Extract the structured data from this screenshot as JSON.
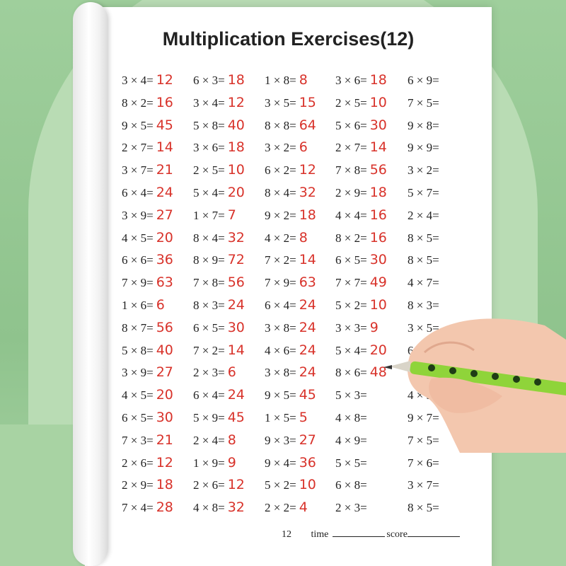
{
  "title": "Multiplication Exercises(12)",
  "columns": [
    [
      [
        "3 × 4=",
        "12"
      ],
      [
        "8 × 2=",
        "16"
      ],
      [
        "9 × 5=",
        "45"
      ],
      [
        "2 × 7=",
        "14"
      ],
      [
        "3 × 7=",
        "21"
      ],
      [
        "6 × 4=",
        "24"
      ],
      [
        "3 × 9=",
        "27"
      ],
      [
        "4 × 5=",
        "20"
      ],
      [
        "6 × 6=",
        "36"
      ],
      [
        "7 × 9=",
        "63"
      ],
      [
        "1 × 6=",
        "6"
      ],
      [
        "8 × 7=",
        "56"
      ],
      [
        "5 × 8=",
        "40"
      ],
      [
        "3 × 9=",
        "27"
      ],
      [
        "4 × 5=",
        "20"
      ],
      [
        "6 × 5=",
        "30"
      ],
      [
        "7 × 3=",
        "21"
      ],
      [
        "2 × 6=",
        "12"
      ],
      [
        "2 × 9=",
        "18"
      ],
      [
        "7 × 4=",
        "28"
      ]
    ],
    [
      [
        "6 × 3=",
        "18"
      ],
      [
        "3 × 4=",
        "12"
      ],
      [
        "5 × 8=",
        "40"
      ],
      [
        "3 × 6=",
        "18"
      ],
      [
        "2 × 5=",
        "10"
      ],
      [
        "5 × 4=",
        "20"
      ],
      [
        "1 × 7=",
        "7"
      ],
      [
        "8 × 4=",
        "32"
      ],
      [
        "8 × 9=",
        "72"
      ],
      [
        "7 × 8=",
        "56"
      ],
      [
        "8 × 3=",
        "24"
      ],
      [
        "6 × 5=",
        "30"
      ],
      [
        "7 × 2=",
        "14"
      ],
      [
        "2 × 3=",
        "6"
      ],
      [
        "6 × 4=",
        "24"
      ],
      [
        "5 × 9=",
        "45"
      ],
      [
        "2 × 4=",
        "8"
      ],
      [
        "1 × 9=",
        "9"
      ],
      [
        "2 × 6=",
        "12"
      ],
      [
        "4 × 8=",
        "32"
      ]
    ],
    [
      [
        "1 × 8=",
        "8"
      ],
      [
        "3 × 5=",
        "15"
      ],
      [
        "8 × 8=",
        "64"
      ],
      [
        "3 × 2=",
        "6"
      ],
      [
        "6 × 2=",
        "12"
      ],
      [
        "8 × 4=",
        "32"
      ],
      [
        "9 × 2=",
        "18"
      ],
      [
        "4 × 2=",
        "8"
      ],
      [
        "7 × 2=",
        "14"
      ],
      [
        "7 × 9=",
        "63"
      ],
      [
        "6 × 4=",
        "24"
      ],
      [
        "3 × 8=",
        "24"
      ],
      [
        "4 × 6=",
        "24"
      ],
      [
        "3 × 8=",
        "24"
      ],
      [
        "9 × 5=",
        "45"
      ],
      [
        "1 × 5=",
        "5"
      ],
      [
        "9 × 3=",
        "27"
      ],
      [
        "9 × 4=",
        "36"
      ],
      [
        "5 × 2=",
        "10"
      ],
      [
        "2 × 2=",
        "4"
      ]
    ],
    [
      [
        "3 × 6=",
        "18"
      ],
      [
        "2 × 5=",
        "10"
      ],
      [
        "5 × 6=",
        "30"
      ],
      [
        "2 × 7=",
        "14"
      ],
      [
        "7 × 8=",
        "56"
      ],
      [
        "2 × 9=",
        "18"
      ],
      [
        "4 × 4=",
        "16"
      ],
      [
        "8 × 2=",
        "16"
      ],
      [
        "6 × 5=",
        "30"
      ],
      [
        "7 × 7=",
        "49"
      ],
      [
        "5 × 2=",
        "10"
      ],
      [
        "3 × 3=",
        "9"
      ],
      [
        "5 × 4=",
        "20"
      ],
      [
        "8 × 6=",
        "48"
      ],
      [
        "5 × 3=",
        ""
      ],
      [
        "4 × 8=",
        ""
      ],
      [
        "4 × 9=",
        ""
      ],
      [
        "5 × 5=",
        ""
      ],
      [
        "6 × 8=",
        ""
      ],
      [
        "2 × 3=",
        ""
      ]
    ],
    [
      [
        "6 × 9=",
        ""
      ],
      [
        "7 × 5=",
        ""
      ],
      [
        "9 × 8=",
        ""
      ],
      [
        "9 × 9=",
        ""
      ],
      [
        "3 × 2=",
        ""
      ],
      [
        "5 × 7=",
        ""
      ],
      [
        "2 × 4=",
        ""
      ],
      [
        "8 × 5=",
        ""
      ],
      [
        "8 × 5=",
        ""
      ],
      [
        "4 × 7=",
        ""
      ],
      [
        "8 × 3=",
        ""
      ],
      [
        "3 × 5=",
        ""
      ],
      [
        "6 × 7=",
        ""
      ],
      [
        "",
        ""
      ],
      [
        "4 × 3",
        ""
      ],
      [
        "9 × 7=",
        ""
      ],
      [
        "7 × 5=",
        ""
      ],
      [
        "7 × 6=",
        ""
      ],
      [
        "3 × 7=",
        ""
      ],
      [
        "8 × 5=",
        ""
      ]
    ]
  ],
  "footer": {
    "page": "12",
    "time_label": "time",
    "score_label": "score"
  },
  "colors": {
    "answer": "#d8322a",
    "background": "#9fcf9c",
    "pencil": "#8fd43a"
  }
}
